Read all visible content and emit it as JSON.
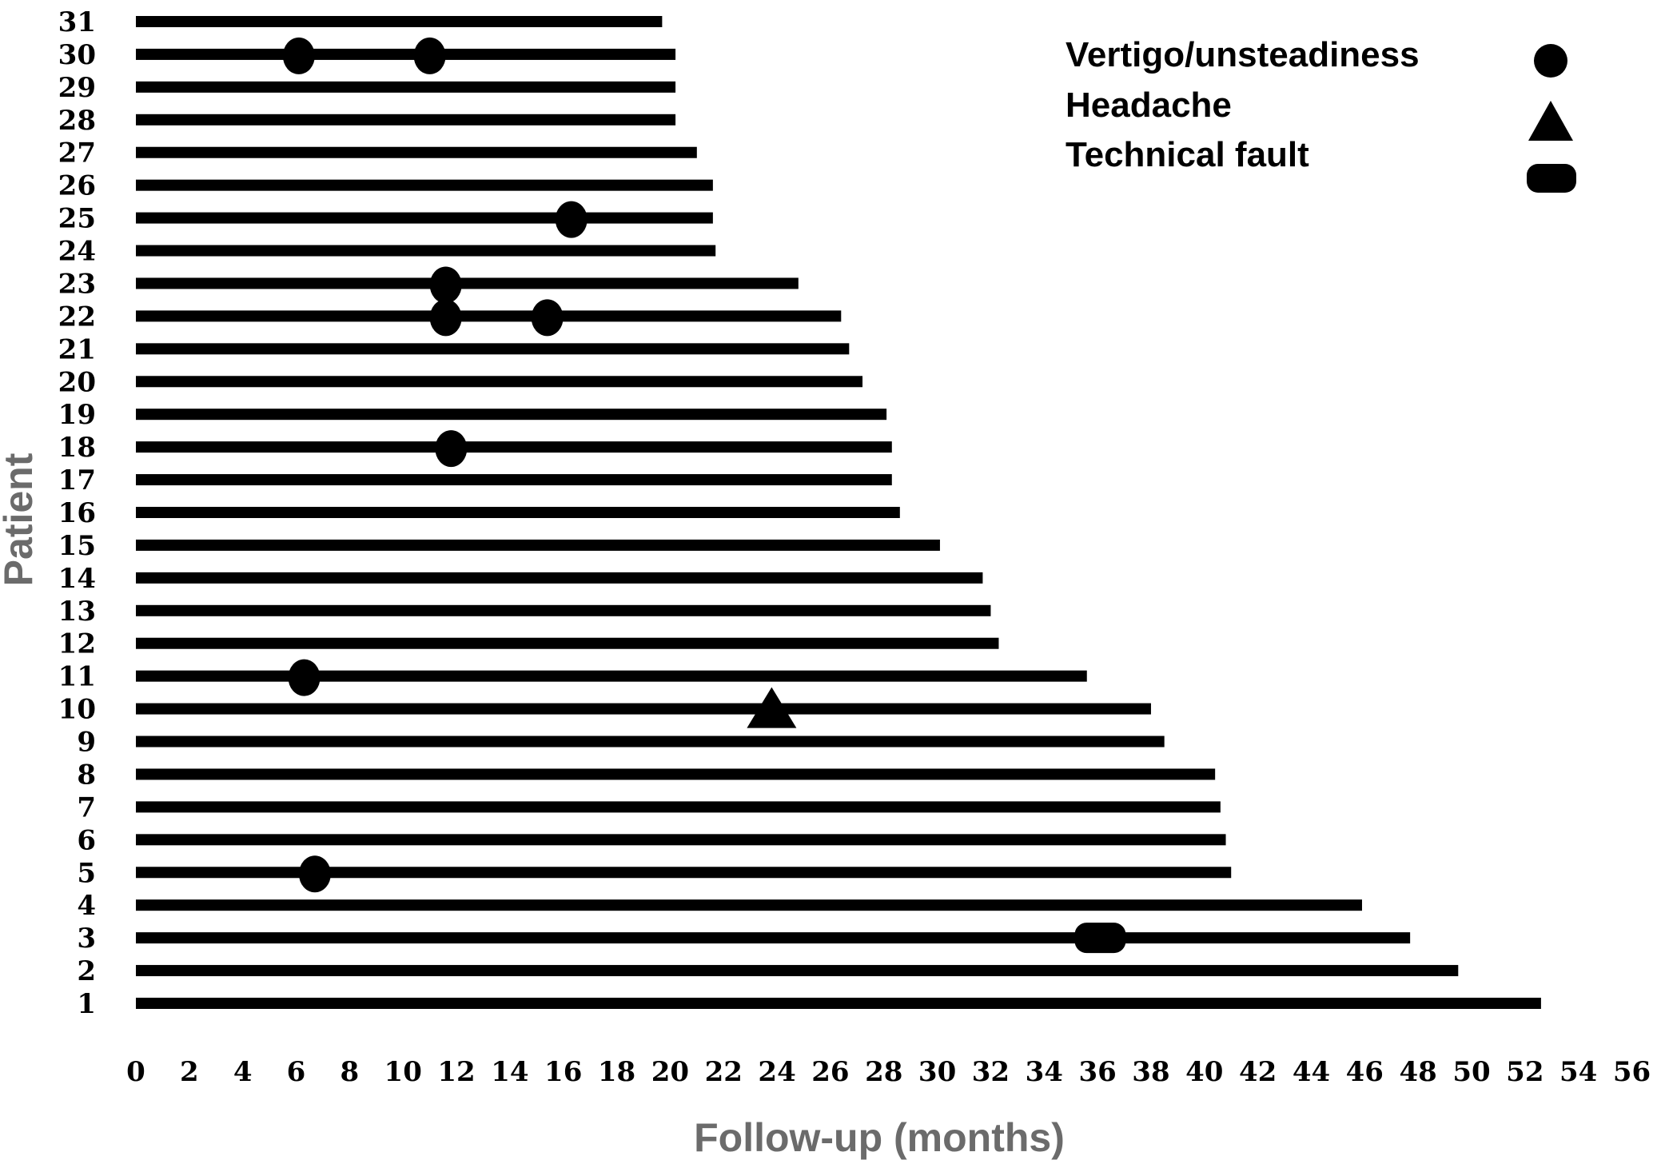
{
  "chart_data": {
    "type": "gantt",
    "title": "",
    "xlabel": "Follow-up (months)",
    "ylabel": "Patient",
    "xlim": [
      0,
      56
    ],
    "xticks": [
      "0",
      "2",
      "4",
      "6",
      "8",
      "10",
      "12",
      "14",
      "16",
      "18",
      "20",
      "22",
      "24",
      "26",
      "28",
      "30",
      "32",
      "34",
      "36",
      "38",
      "40",
      "42",
      "44",
      "46",
      "48",
      "50",
      "52",
      "54",
      "56"
    ],
    "grid": false,
    "bar_color": "#000000",
    "legend": {
      "position": "top-right",
      "items": [
        {
          "label": "Vertigo/unsteadiness",
          "marker": "circle"
        },
        {
          "label": "Headache",
          "marker": "triangle"
        },
        {
          "label": "Technical fault",
          "marker": "rounded-rect"
        }
      ]
    },
    "patients": [
      {
        "id": "1",
        "followup": 52.6,
        "events": []
      },
      {
        "id": "2",
        "followup": 49.5,
        "events": []
      },
      {
        "id": "3",
        "followup": 47.7,
        "events": [
          {
            "type": "technical",
            "month": 36.1
          }
        ]
      },
      {
        "id": "4",
        "followup": 45.9,
        "events": []
      },
      {
        "id": "5",
        "followup": 41.0,
        "events": [
          {
            "type": "vertigo",
            "month": 6.7
          }
        ]
      },
      {
        "id": "6",
        "followup": 40.8,
        "events": []
      },
      {
        "id": "7",
        "followup": 40.6,
        "events": []
      },
      {
        "id": "8",
        "followup": 40.4,
        "events": []
      },
      {
        "id": "9",
        "followup": 38.5,
        "events": []
      },
      {
        "id": "10",
        "followup": 38.0,
        "events": [
          {
            "type": "headache",
            "month": 23.8
          }
        ]
      },
      {
        "id": "11",
        "followup": 35.6,
        "events": [
          {
            "type": "vertigo",
            "month": 6.3
          }
        ]
      },
      {
        "id": "12",
        "followup": 32.3,
        "events": []
      },
      {
        "id": "13",
        "followup": 32.0,
        "events": []
      },
      {
        "id": "14",
        "followup": 31.7,
        "events": []
      },
      {
        "id": "15",
        "followup": 30.1,
        "events": []
      },
      {
        "id": "16",
        "followup": 28.6,
        "events": []
      },
      {
        "id": "17",
        "followup": 28.3,
        "events": []
      },
      {
        "id": "18",
        "followup": 28.3,
        "events": [
          {
            "type": "vertigo",
            "month": 11.8
          }
        ]
      },
      {
        "id": "19",
        "followup": 28.1,
        "events": []
      },
      {
        "id": "20",
        "followup": 27.2,
        "events": []
      },
      {
        "id": "21",
        "followup": 26.7,
        "events": []
      },
      {
        "id": "22",
        "followup": 26.4,
        "events": [
          {
            "type": "vertigo",
            "month": 11.6
          },
          {
            "type": "vertigo",
            "month": 15.4
          }
        ]
      },
      {
        "id": "23",
        "followup": 24.8,
        "events": [
          {
            "type": "vertigo",
            "month": 11.6
          }
        ]
      },
      {
        "id": "24",
        "followup": 21.7,
        "events": []
      },
      {
        "id": "25",
        "followup": 21.6,
        "events": [
          {
            "type": "vertigo",
            "month": 16.3
          }
        ]
      },
      {
        "id": "26",
        "followup": 21.6,
        "events": []
      },
      {
        "id": "27",
        "followup": 21.0,
        "events": []
      },
      {
        "id": "28",
        "followup": 20.2,
        "events": []
      },
      {
        "id": "29",
        "followup": 20.2,
        "events": []
      },
      {
        "id": "30",
        "followup": 20.2,
        "events": [
          {
            "type": "vertigo",
            "month": 6.1
          },
          {
            "type": "vertigo",
            "month": 11.0
          }
        ]
      },
      {
        "id": "31",
        "followup": 19.7,
        "events": []
      }
    ]
  }
}
